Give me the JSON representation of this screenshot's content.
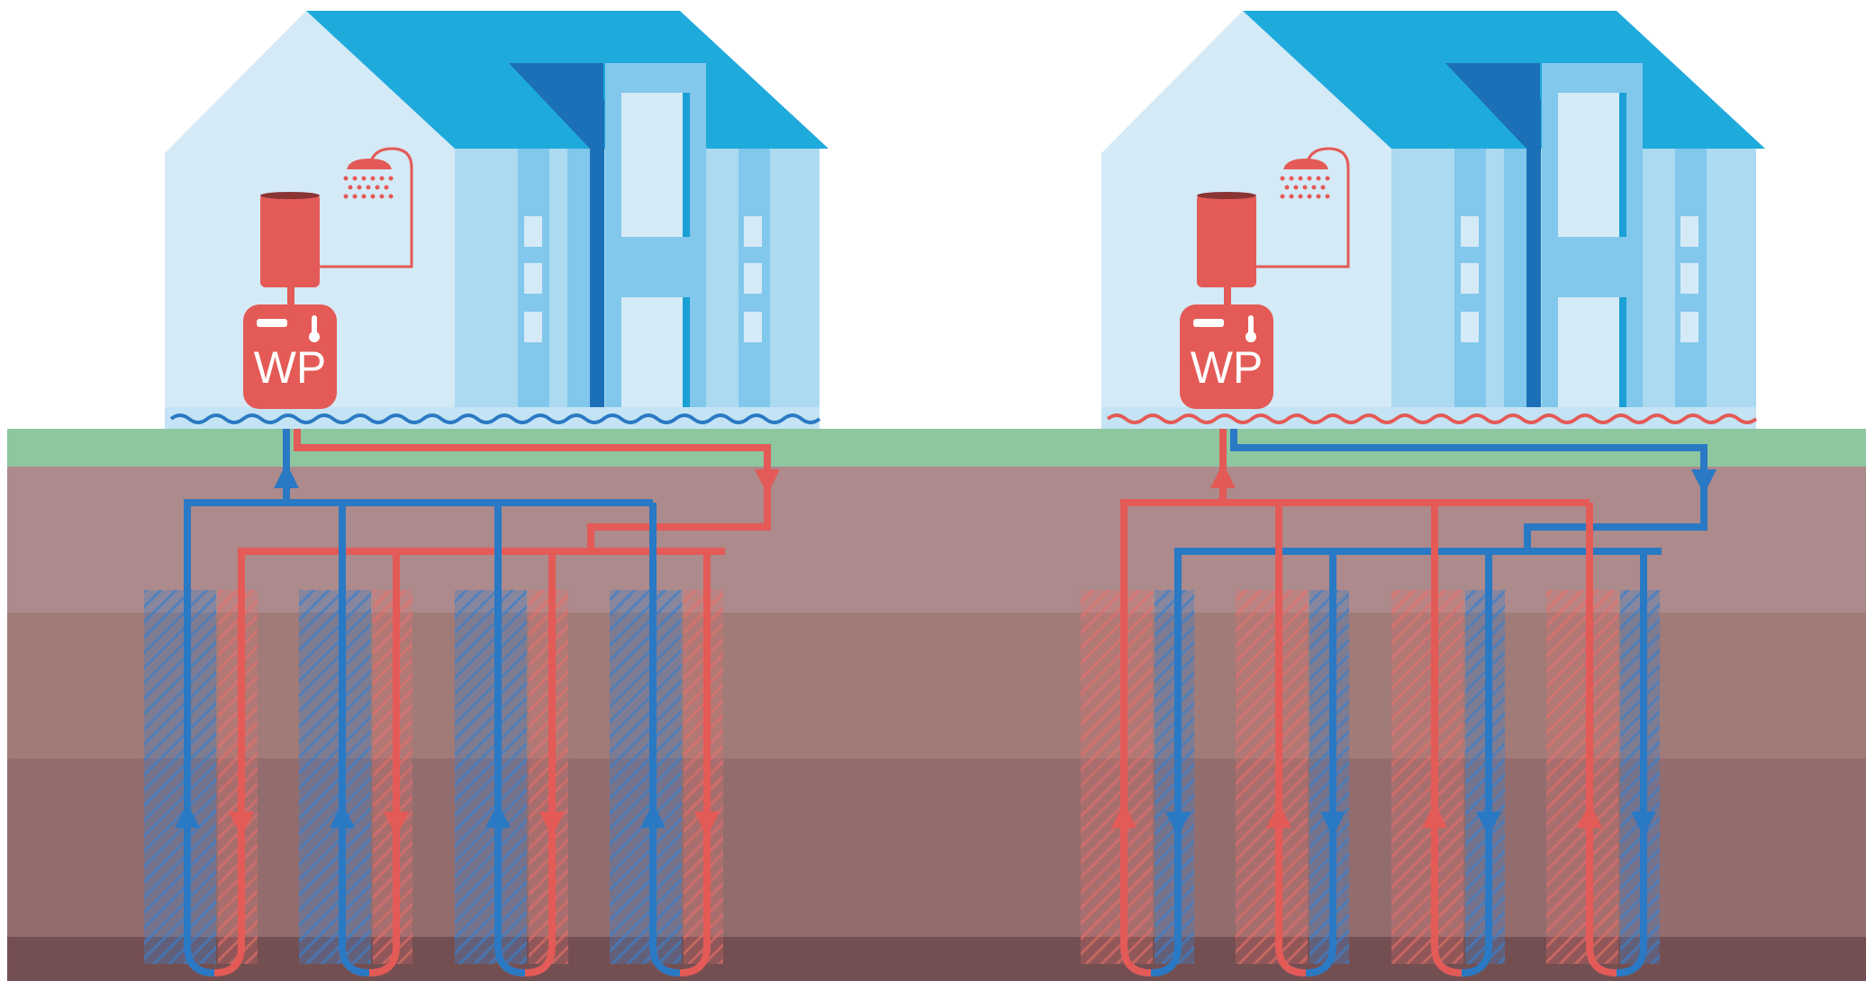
{
  "houses": [
    {
      "id": "left",
      "mode": "heating",
      "heatpump": {
        "label": "WP"
      },
      "colors": {
        "supply": "#2a79c4",
        "return": "#e45a56",
        "floor": "#2a79c4",
        "hatch": "#3e7fc6"
      }
    },
    {
      "id": "right",
      "mode": "cooling",
      "heatpump": {
        "label": "WP"
      },
      "colors": {
        "supply": "#e45a56",
        "return": "#2a79c4",
        "floor": "#e45a56",
        "hatch": "#e8706b"
      }
    }
  ],
  "palette": {
    "sky": "#ffffff",
    "grass": "#8ec6a0",
    "soil_layers": [
      "#ad8a8b",
      "#a07b78",
      "#936d6e",
      "#744f52"
    ],
    "roof": "#1faadc",
    "roof_dark": "#1c70b7",
    "wall_light": "#d4eaf6",
    "wall_mid": "#acdaf1",
    "wall_blue": "#82c7ec",
    "tank": "#e45a56"
  }
}
